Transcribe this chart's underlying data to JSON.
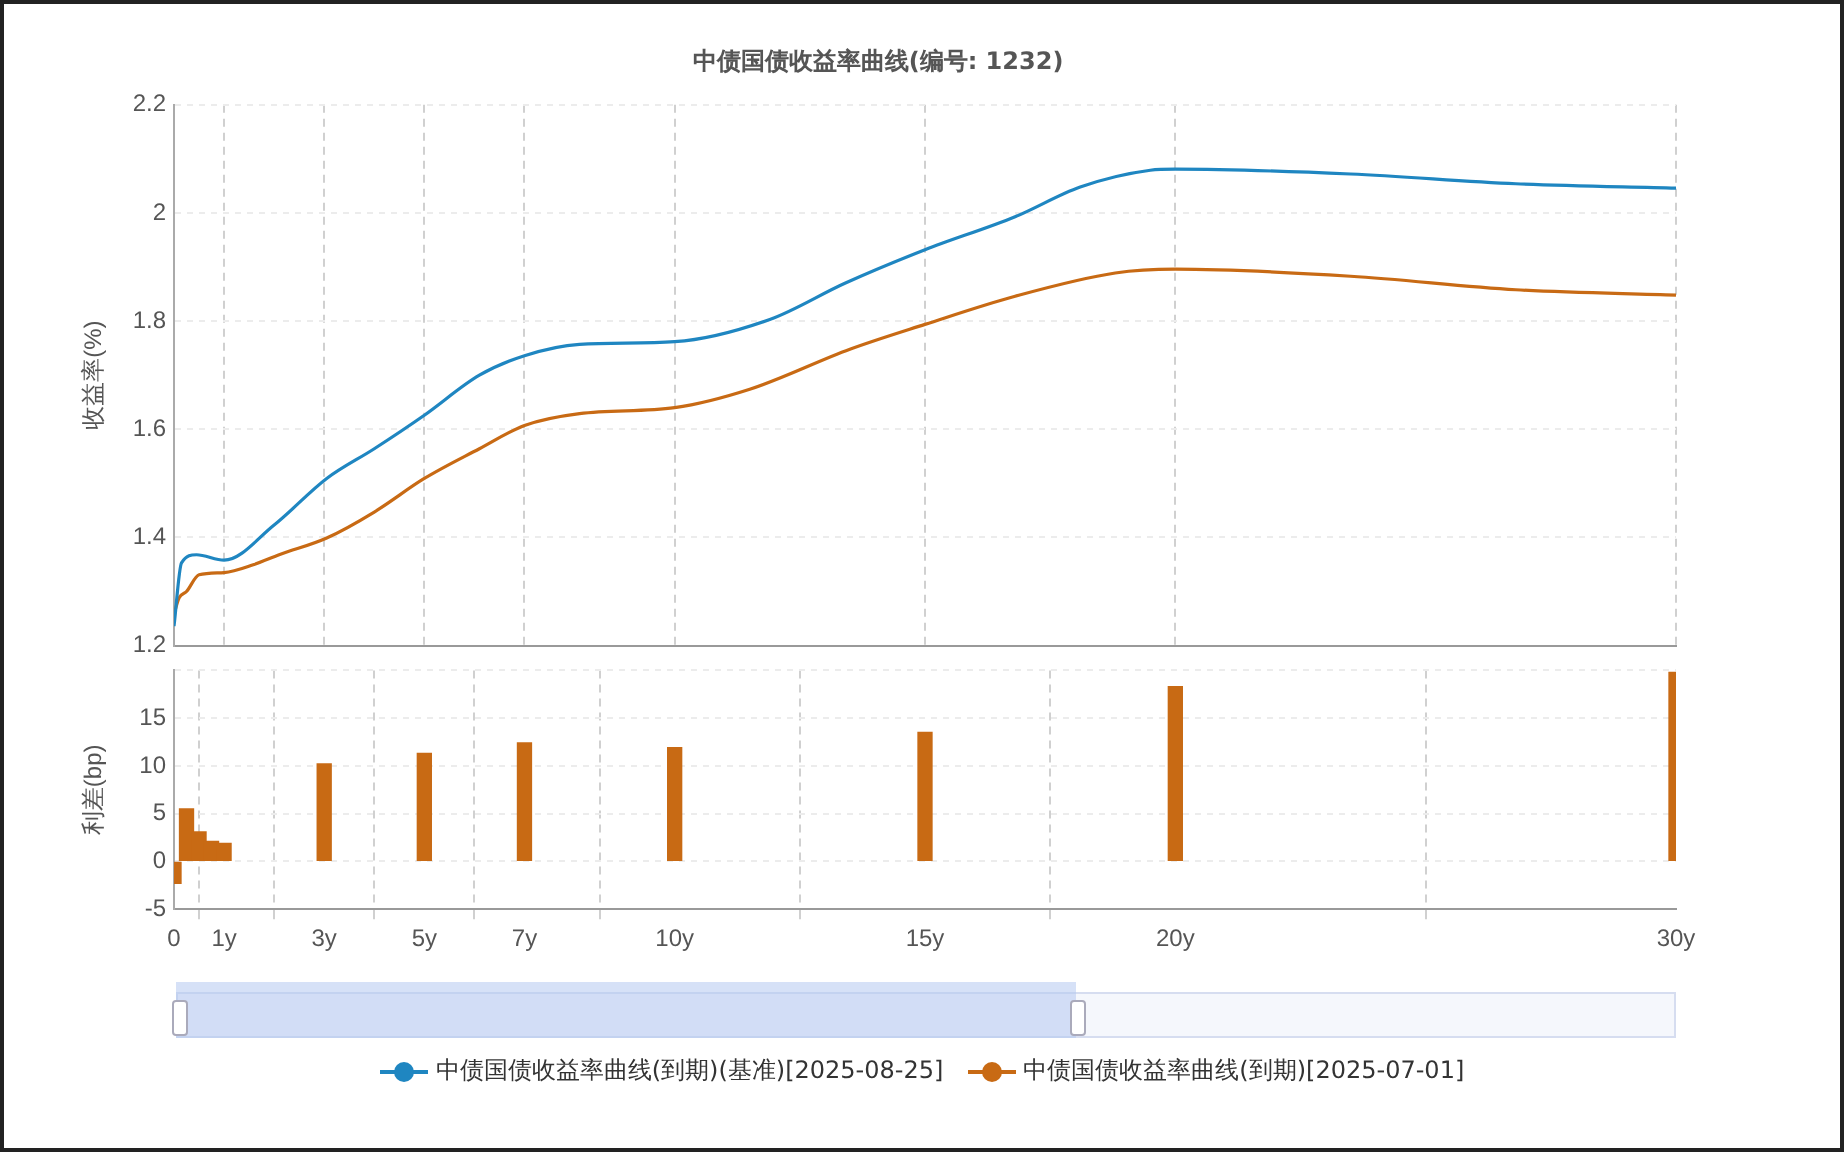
{
  "chart_data": [
    {
      "type": "line",
      "title": "中债国债收益率曲线(编号: 1232)",
      "ylabel": "收益率(%)",
      "series": [
        {
          "name": "中债国债收益率曲线(到期)(基准)[2025-08-25]",
          "color": "#1f86c1",
          "x": [
            0,
            0.15,
            0.45,
            1,
            2,
            3.05,
            4,
            5,
            6.1,
            7,
            8.1,
            10,
            11.9,
            13.4,
            15,
            16.8,
            18.1,
            19.5,
            20,
            23.5,
            26.8,
            30
          ],
          "values": [
            1.236,
            1.353,
            1.368,
            1.358,
            1.423,
            1.509,
            1.564,
            1.626,
            1.7,
            1.736,
            1.757,
            1.762,
            1.803,
            1.87,
            1.932,
            1.993,
            2.048,
            2.079,
            2.081,
            2.072,
            2.054,
            2.046
          ]
        },
        {
          "name": "中债国债收益率曲线(到期)[2025-07-01]",
          "color": "#c86a14",
          "x": [
            0,
            0.1,
            0.25,
            0.5,
            1,
            1.6,
            2.1,
            3.05,
            4,
            5,
            6.1,
            7,
            8.1,
            10,
            11.5,
            13.5,
            15,
            16.8,
            18.8,
            20,
            23.5,
            26.8,
            30
          ],
          "values": [
            1.258,
            1.288,
            1.3,
            1.331,
            1.335,
            1.35,
            1.368,
            1.399,
            1.447,
            1.509,
            1.564,
            1.607,
            1.629,
            1.64,
            1.674,
            1.748,
            1.794,
            1.846,
            1.889,
            1.896,
            1.883,
            1.858,
            1.848
          ]
        }
      ],
      "xlim": [
        0,
        30
      ],
      "xticks": [
        0,
        1,
        3,
        5,
        7,
        10,
        15,
        20,
        30
      ],
      "ylim": [
        1.2,
        2.2
      ],
      "yticks": [
        1.2,
        1.4,
        1.6,
        1.8,
        2,
        2.2
      ],
      "grid": true,
      "legend": "bottom",
      "tick_labels": "y"
    },
    {
      "type": "bar",
      "ylabel": "利差(bp)",
      "color": "#c86a14",
      "x": [
        0,
        0.25,
        0.5,
        0.75,
        1,
        3,
        5,
        7,
        10,
        15,
        20,
        30
      ],
      "values": [
        -2.3,
        5.5,
        3.1,
        2.1,
        1.9,
        10.2,
        11.3,
        12.4,
        11.9,
        13.5,
        18.3,
        19.8
      ],
      "xlim": [
        0,
        30
      ],
      "xticks": [
        {
          "value": 0,
          "label": "0"
        },
        {
          "value": 1,
          "label": "1y"
        },
        {
          "value": 3,
          "label": "3y"
        },
        {
          "value": 5,
          "label": "5y"
        },
        {
          "value": 7,
          "label": "7y"
        },
        {
          "value": 10,
          "label": "10y"
        },
        {
          "value": 15,
          "label": "15y"
        },
        {
          "value": 20,
          "label": "20y"
        },
        {
          "value": 30,
          "label": "30y"
        }
      ],
      "ylim": [
        -5,
        20
      ],
      "yticks": [
        -5,
        0,
        5,
        10,
        15,
        {
          "value": 20,
          "label": null
        }
      ],
      "grid": true
    }
  ]
}
